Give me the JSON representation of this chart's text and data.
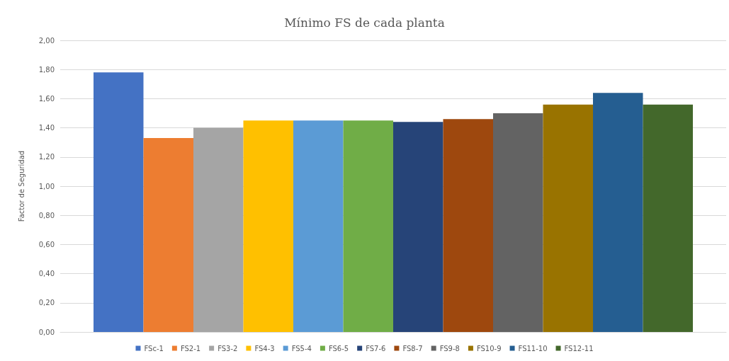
{
  "chart_data": {
    "type": "bar",
    "title": "Mínimo FS de cada planta",
    "ylabel": "Factor de Seguridad",
    "categories": [
      null
    ],
    "series": [
      {
        "name": "FSc-1",
        "color": "#4472c4",
        "values": [
          1.78
        ]
      },
      {
        "name": "FS2-1",
        "color": "#ed7d31",
        "values": [
          1.33
        ]
      },
      {
        "name": "FS3-2",
        "color": "#a5a5a5",
        "values": [
          1.4
        ]
      },
      {
        "name": "FS4-3",
        "color": "#ffc000",
        "values": [
          1.45
        ]
      },
      {
        "name": "FS5-4",
        "color": "#5b9bd5",
        "values": [
          1.45
        ]
      },
      {
        "name": "FS6-5",
        "color": "#70ad47",
        "values": [
          1.45
        ]
      },
      {
        "name": "FS7-6",
        "color": "#264478",
        "values": [
          1.44
        ]
      },
      {
        "name": "FS8-7",
        "color": "#9e480e",
        "values": [
          1.46
        ]
      },
      {
        "name": "FS9-8",
        "color": "#636363",
        "values": [
          1.5
        ]
      },
      {
        "name": "FS10-9",
        "color": "#997300",
        "values": [
          1.56
        ]
      },
      {
        "name": "FS11-10",
        "color": "#255e91",
        "values": [
          1.64
        ]
      },
      {
        "name": "FS12-11",
        "color": "#43682b",
        "values": [
          1.56
        ]
      }
    ],
    "ylim": [
      0,
      2
    ],
    "yticks": [
      {
        "value": 0,
        "label": "0,00"
      },
      {
        "value": 0.2,
        "label": "0,20"
      },
      {
        "value": 0.4,
        "label": "0,40"
      },
      {
        "value": 0.6,
        "label": "0,60"
      },
      {
        "value": 0.8,
        "label": "0,80"
      },
      {
        "value": 1,
        "label": "1,00"
      },
      {
        "value": 1.2,
        "label": "1,20"
      },
      {
        "value": 1.4,
        "label": "1,40"
      },
      {
        "value": 1.6,
        "label": "1,60"
      },
      {
        "value": 1.8,
        "label": "1,80"
      },
      {
        "value": 2,
        "label": "2,00"
      }
    ],
    "grid": "y",
    "legend": "bottom"
  }
}
